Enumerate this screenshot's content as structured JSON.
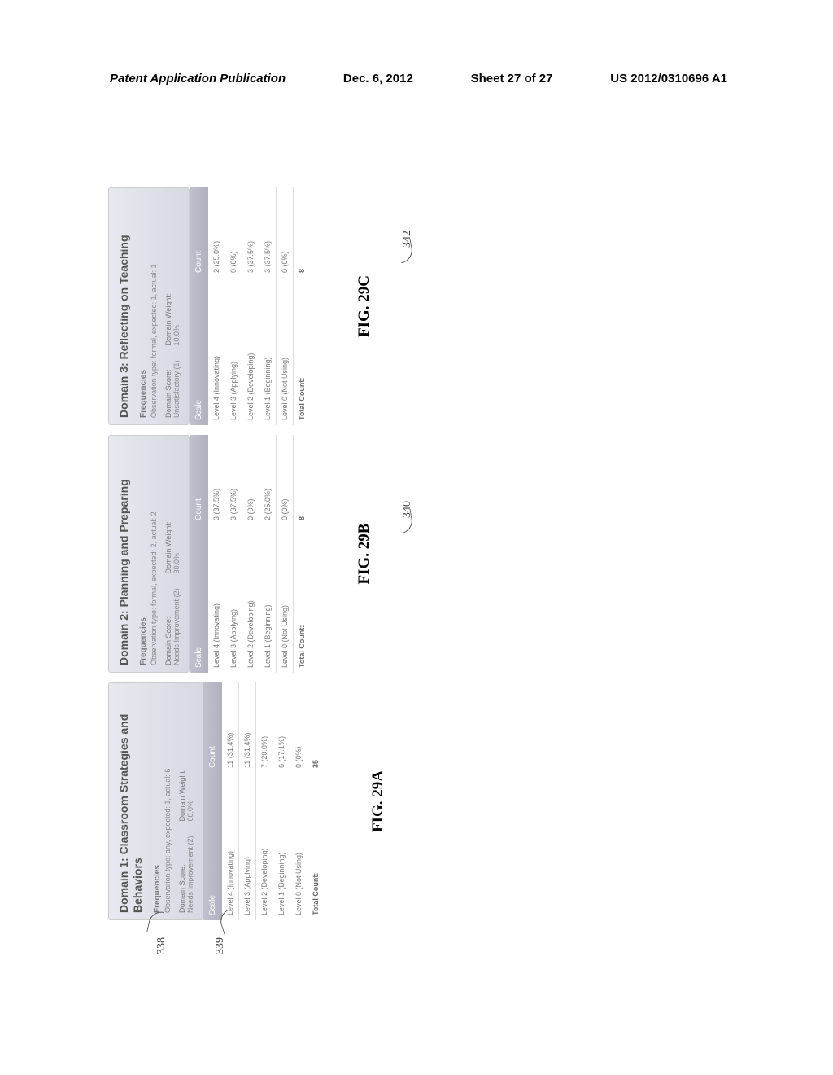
{
  "header": {
    "left": "Patent Application Publication",
    "center": "Dec. 6, 2012",
    "sheet": "Sheet 27 of 27",
    "right": "US 2012/0310696 A1"
  },
  "panels": [
    {
      "title": "Domain 1: Classroom Strategies and Behaviors",
      "freq_label": "Frequencies",
      "obs": "Observation type: any, expected: 1, actual: 6",
      "score_label": "Domain Score:",
      "score_value": "Needs Improvement (2)",
      "weight_label": "Domain Weight:",
      "weight_value": "60.0%",
      "th_scale": "Scale",
      "th_count": "Count",
      "rows": [
        {
          "scale": "Level 4 (Innovating)",
          "count": "11 (31.4%)"
        },
        {
          "scale": "Level 3 (Applying)",
          "count": "11 (31.4%)"
        },
        {
          "scale": "Level 2 (Developing)",
          "count": "7 (20.0%)"
        },
        {
          "scale": "Level 1 (Beginning)",
          "count": "6 (17.1%)"
        },
        {
          "scale": "Level 0 (Not Using)",
          "count": "0 (0%)"
        }
      ],
      "total_label": "Total Count:",
      "total_value": "35",
      "fig": "FIG. 29A",
      "figure_ref_a": "338",
      "figure_ref_b": "339"
    },
    {
      "title": "Domain 2: Planning and Preparing",
      "freq_label": "Frequencies",
      "obs": "Observation type: formal, expected: 2, actual: 2",
      "score_label": "Domain Score:",
      "score_value": "Needs Improvement (2)",
      "weight_label": "Domain Weight:",
      "weight_value": "30.0%",
      "th_scale": "Scale",
      "th_count": "Count",
      "rows": [
        {
          "scale": "Level 4 (Innovating)",
          "count": "3 (37.5%)"
        },
        {
          "scale": "Level 3 (Applying)",
          "count": "3 (37.5%)"
        },
        {
          "scale": "Level 2 (Developing)",
          "count": "0 (0%)"
        },
        {
          "scale": "Level 1 (Beginning)",
          "count": "2 (25.0%)"
        },
        {
          "scale": "Level 0 (Not Using)",
          "count": "0 (0%)"
        }
      ],
      "total_label": "Total Count:",
      "total_value": "8",
      "fig": "FIG. 29B",
      "figure_ref": "340"
    },
    {
      "title": "Domain 3: Reflecting on Teaching",
      "freq_label": "Frequencies",
      "obs": "Observation type: formal, expected: 1, actual: 1",
      "score_label": "Domain Score:",
      "score_value": "Unsatisfactory (1)",
      "weight_label": "Domain Weight:",
      "weight_value": "10.0%",
      "th_scale": "Scale",
      "th_count": "Count",
      "rows": [
        {
          "scale": "Level 4 (Innovating)",
          "count": "2 (25.0%)"
        },
        {
          "scale": "Level 3 (Applying)",
          "count": "0 (0%)"
        },
        {
          "scale": "Level 2 (Developing)",
          "count": "3 (37.5%)"
        },
        {
          "scale": "Level 1 (Beginning)",
          "count": "3 (37.5%)"
        },
        {
          "scale": "Level 0 (Not Using)",
          "count": "0 (0%)"
        }
      ],
      "total_label": "Total Count:",
      "total_value": "8",
      "fig": "FIG. 29C",
      "figure_ref": "342"
    }
  ]
}
